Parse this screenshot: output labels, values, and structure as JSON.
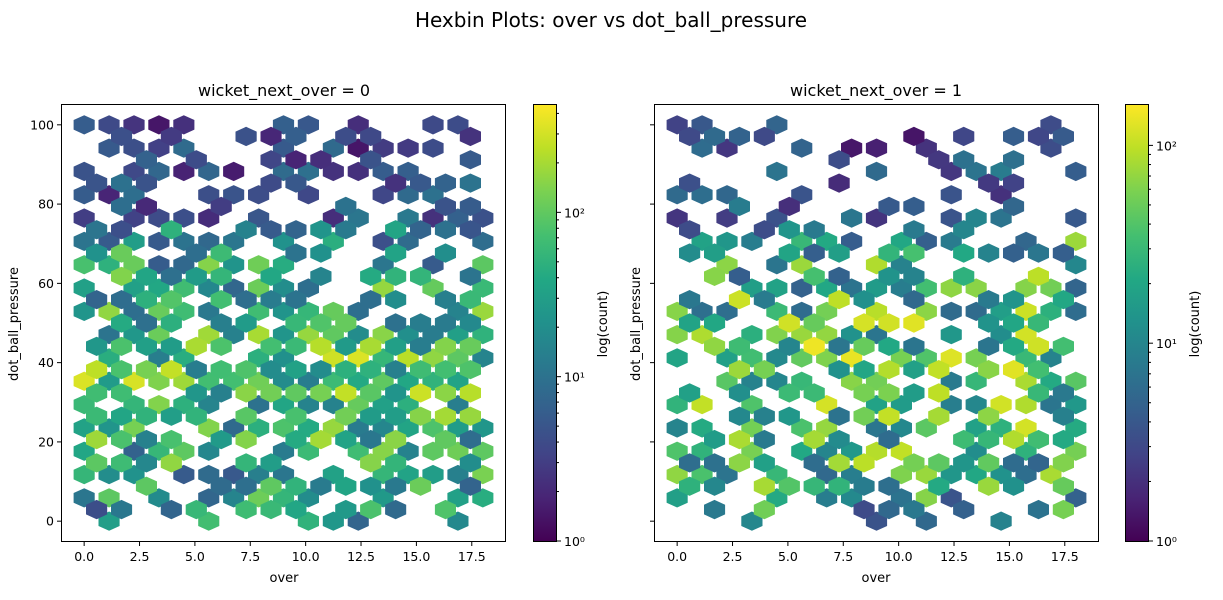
{
  "figure": {
    "title": "Hexbin Plots: over vs dot_ball_pressure"
  },
  "chart_data": [
    {
      "type": "heatmap",
      "subtype": "hexbin",
      "title": "wicket_next_over = 0",
      "xlabel": "over",
      "ylabel": "dot_ball_pressure",
      "xlim": [
        -1,
        19
      ],
      "ylim": [
        -5,
        105
      ],
      "xticks": [
        0.0,
        2.5,
        5.0,
        7.5,
        10.0,
        12.5,
        15.0,
        17.5
      ],
      "xtick_labels": [
        "0.0",
        "2.5",
        "5.0",
        "7.5",
        "10.0",
        "12.5",
        "15.0",
        "17.5"
      ],
      "yticks": [
        0,
        20,
        40,
        60,
        80,
        100
      ],
      "ytick_labels": [
        "0",
        "20",
        "40",
        "60",
        "80",
        "100"
      ],
      "colorscale": "viridis",
      "color_scale_type": "log",
      "colorbar": {
        "label": "log(count)",
        "range": [
          1,
          450
        ],
        "ticks": [
          1,
          10,
          100
        ],
        "tick_labels": [
          "10⁰",
          "10¹",
          "10²"
        ]
      },
      "grid": false
    },
    {
      "type": "heatmap",
      "subtype": "hexbin",
      "title": "wicket_next_over = 1",
      "xlabel": "over",
      "ylabel": "dot_ball_pressure",
      "xlim": [
        -1,
        19
      ],
      "ylim": [
        -5,
        105
      ],
      "xticks": [
        0.0,
        2.5,
        5.0,
        7.5,
        10.0,
        12.5,
        15.0,
        17.5
      ],
      "xtick_labels": [
        "0.0",
        "2.5",
        "5.0",
        "7.5",
        "10.0",
        "12.5",
        "15.0",
        "17.5"
      ],
      "yticks": [
        0,
        20,
        40,
        60,
        80,
        100
      ],
      "ytick_labels": [
        "0",
        "20",
        "40",
        "60",
        "80",
        "100"
      ],
      "colorscale": "viridis",
      "color_scale_type": "log",
      "colorbar": {
        "label": "log(count)",
        "range": [
          1,
          160
        ],
        "ticks": [
          1,
          10,
          100
        ],
        "tick_labels": [
          "10⁰",
          "10¹",
          "10²"
        ]
      },
      "grid": false
    }
  ]
}
